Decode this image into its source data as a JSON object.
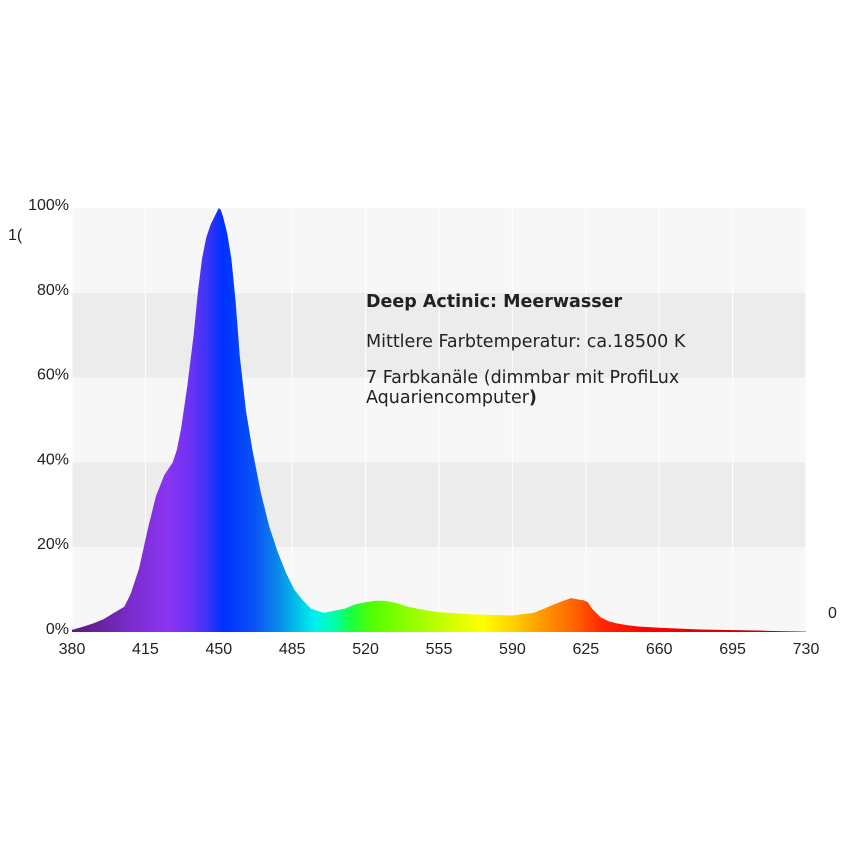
{
  "annotation": {
    "title": "Deep Actinic:  Meerwasser",
    "color_temp": "Mittlere Farbtemperatur: ca.18500 K",
    "channels_main": "7 Farbkanäle (dimmbar mit ProfiLux Aquariencomputer",
    "channels_paren": ")"
  },
  "stray_labels": {
    "right_zero": "0",
    "left_fragment": "1("
  },
  "chart_data": {
    "type": "area",
    "xlim": [
      380,
      730
    ],
    "ylim": [
      0,
      100
    ],
    "x_ticks": [
      380,
      415,
      450,
      485,
      520,
      555,
      590,
      625,
      660,
      695,
      730
    ],
    "y_ticks": [
      0,
      20,
      40,
      60,
      80,
      100
    ],
    "y_tick_labels": [
      "0%",
      "20%",
      "40%",
      "60%",
      "80%",
      "100%"
    ],
    "grid": "horizontal alternating bands",
    "fill": "wavelength spectrum colors",
    "x": [
      380,
      385,
      390,
      395,
      400,
      405,
      408,
      412,
      416,
      420,
      424,
      428,
      430,
      432,
      435,
      438,
      440,
      442,
      444,
      446,
      448,
      450,
      451,
      452,
      454,
      456,
      458,
      460,
      463,
      466,
      470,
      474,
      478,
      482,
      486,
      490,
      494,
      500,
      505,
      510,
      515,
      520,
      525,
      530,
      535,
      540,
      545,
      550,
      555,
      560,
      570,
      580,
      590,
      600,
      605,
      610,
      615,
      618,
      620,
      622,
      624,
      626,
      628,
      632,
      636,
      640,
      645,
      650,
      660,
      670,
      680,
      690,
      700,
      710,
      720,
      730
    ],
    "y": [
      0.5,
      1.2,
      2.0,
      3.0,
      4.5,
      6.0,
      9.0,
      15,
      24,
      32,
      37,
      40,
      43,
      48,
      58,
      70,
      80,
      88,
      93,
      96,
      98,
      100,
      99.5,
      98,
      94,
      88,
      78,
      65,
      52,
      43,
      33,
      25,
      19,
      14,
      10,
      7.5,
      5.5,
      4.5,
      5.0,
      5.5,
      6.5,
      7.0,
      7.4,
      7.3,
      6.8,
      6.0,
      5.5,
      5.0,
      4.7,
      4.5,
      4.2,
      4.0,
      3.9,
      4.5,
      5.5,
      6.5,
      7.5,
      8.0,
      7.8,
      7.6,
      7.5,
      7.0,
      5.5,
      3.5,
      2.5,
      2.0,
      1.6,
      1.3,
      1.0,
      0.8,
      0.6,
      0.5,
      0.4,
      0.3,
      0.2,
      0.1
    ]
  }
}
